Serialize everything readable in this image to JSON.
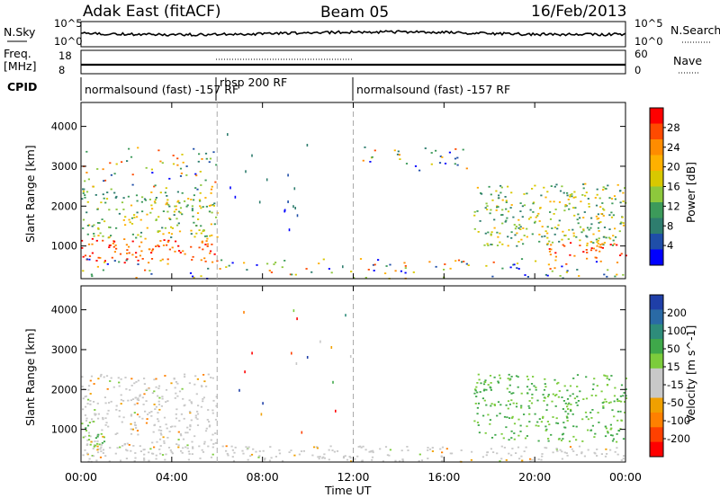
{
  "header": {
    "title": "Adak East (fitACF)",
    "beam": "Beam 05",
    "date": "16/Feb/2013"
  },
  "nsky": {
    "label": "N.Sky",
    "ticks_left": [
      "10^5",
      "10^0"
    ],
    "ticks_right": [
      "10^5",
      "10^0"
    ],
    "right_label": "N.Search"
  },
  "freq": {
    "label_line1": "Freq.",
    "label_line2": "[MHz]",
    "ticks_left": [
      "18",
      "8"
    ],
    "ticks_right": [
      "60",
      "0"
    ],
    "right_label": "Nave"
  },
  "cpid": {
    "label": "CPID",
    "segments": [
      {
        "text": "normalsound (fast) -157 RF",
        "start_hour": 0
      },
      {
        "text": "rbsp 200 RF",
        "start_hour": 6
      },
      {
        "text": "normalsound (fast) -157 RF",
        "start_hour": 12
      }
    ]
  },
  "axes": {
    "ylabel": "Slant Range [km]",
    "yticks": [
      "1000",
      "2000",
      "3000",
      "4000"
    ],
    "xticks": [
      "00:00",
      "04:00",
      "08:00",
      "12:00",
      "16:00",
      "20:00",
      "00:00"
    ],
    "xlabel": "Time UT"
  },
  "power_colorbar": {
    "label": "Power [dB]",
    "ticks": [
      "28",
      "24",
      "20",
      "16",
      "12",
      "8",
      "4"
    ],
    "colors": [
      "#ff0000",
      "#ff4a00",
      "#ff8c00",
      "#ffb000",
      "#d8c800",
      "#8dc83c",
      "#3c9a5a",
      "#2e7d6e",
      "#1f4ea8",
      "#0000ff"
    ]
  },
  "velocity_colorbar": {
    "label": "Velocity [m s^-1]",
    "ticks": [
      "200",
      "100",
      "50",
      "15",
      "-15",
      "-50",
      "-100",
      "-200"
    ],
    "colors": [
      "#1f3fa8",
      "#2a6aa5",
      "#2e8c7a",
      "#3fa84a",
      "#7ccc3c",
      "#c8c8c8",
      "#c8c8c8",
      "#f0a000",
      "#ff8000",
      "#ff4000",
      "#ff0000"
    ]
  },
  "chart_data": {
    "type": "heatmap",
    "x_range_hours": [
      0,
      24
    ],
    "y_range_km": [
      180,
      4600
    ],
    "mode_changes_hours": [
      6,
      12
    ],
    "panels": [
      {
        "name": "Power",
        "units": "dB",
        "color_range": [
          0,
          30
        ],
        "echo_regions": [
          {
            "t0": 0.0,
            "t1": 6.0,
            "r0": 600,
            "r1": 1200,
            "level": "strong"
          },
          {
            "t0": 0.0,
            "t1": 6.0,
            "r0": 1200,
            "r1": 2400,
            "level": "medium"
          },
          {
            "t0": 0.0,
            "t1": 6.0,
            "r0": 2400,
            "r1": 3500,
            "level": "weak"
          },
          {
            "t0": 0.0,
            "t1": 24.0,
            "r0": 200,
            "r1": 700,
            "level": "weak"
          },
          {
            "t0": 17.3,
            "t1": 24.0,
            "r0": 1000,
            "r1": 2600,
            "level": "medium"
          },
          {
            "t0": 20.5,
            "t1": 24.0,
            "r0": 700,
            "r1": 1100,
            "level": "strong"
          },
          {
            "t0": 12.0,
            "t1": 17.0,
            "r0": 2900,
            "r1": 3500,
            "level": "weak"
          }
        ]
      },
      {
        "name": "Velocity",
        "units": "m s^-1",
        "color_range": [
          -200,
          200
        ],
        "echo_regions": [
          {
            "t0": 0.0,
            "t1": 6.0,
            "r0": 500,
            "r1": 2400,
            "level": "low velocity"
          },
          {
            "t0": 0.0,
            "t1": 1.0,
            "r0": 500,
            "r1": 1200,
            "level": "positive"
          },
          {
            "t0": 17.3,
            "t1": 24.0,
            "r0": 700,
            "r1": 2400,
            "level": "positive"
          },
          {
            "t0": 0.0,
            "t1": 24.0,
            "r0": 200,
            "r1": 600,
            "level": "low velocity"
          }
        ]
      }
    ]
  }
}
